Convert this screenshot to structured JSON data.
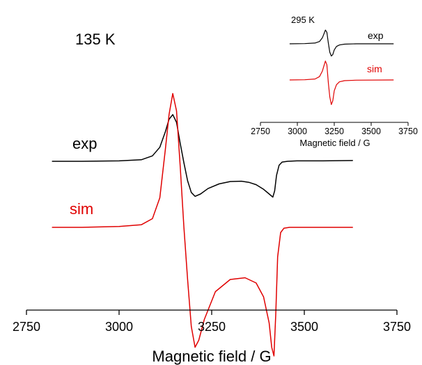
{
  "chart_data": [
    {
      "type": "line",
      "panel": "main",
      "annotation": "135 K",
      "xlabel": "Magnetic field / G",
      "ylabel": "",
      "xlim": [
        2750,
        3750
      ],
      "ylim": [
        -1.0,
        1.0
      ],
      "xticks": [
        2750,
        3000,
        3250,
        3500,
        3750
      ],
      "grid": false,
      "legend": "inline labels left of traces",
      "series": [
        {
          "name": "exp",
          "color": "#000000",
          "baseline": 0.32,
          "x": [
            2820,
            2900,
            3000,
            3060,
            3090,
            3110,
            3125,
            3135,
            3145,
            3155,
            3165,
            3175,
            3185,
            3195,
            3205,
            3220,
            3240,
            3270,
            3300,
            3330,
            3350,
            3370,
            3390,
            3405,
            3415,
            3420,
            3425,
            3432,
            3440,
            3455,
            3480,
            3550,
            3630
          ],
          "y": [
            0.32,
            0.32,
            0.325,
            0.34,
            0.39,
            0.5,
            0.7,
            0.86,
            0.92,
            0.82,
            0.55,
            0.3,
            0.07,
            -0.08,
            -0.13,
            -0.1,
            -0.03,
            0.03,
            0.06,
            0.065,
            0.05,
            0.02,
            -0.04,
            -0.1,
            -0.14,
            -0.06,
            0.14,
            0.27,
            0.31,
            0.32,
            0.325,
            0.325,
            0.33
          ]
        },
        {
          "name": "sim",
          "color": "#e00000",
          "baseline": -0.05,
          "x": [
            2820,
            2900,
            3000,
            3060,
            3090,
            3110,
            3125,
            3135,
            3145,
            3155,
            3165,
            3175,
            3185,
            3195,
            3205,
            3215,
            3230,
            3260,
            3300,
            3340,
            3370,
            3390,
            3405,
            3412,
            3418,
            3423,
            3428,
            3436,
            3445,
            3460,
            3500,
            3630
          ],
          "y": [
            -0.05,
            -0.05,
            -0.045,
            -0.035,
            0.0,
            0.12,
            0.4,
            0.6,
            0.72,
            0.62,
            0.3,
            -0.05,
            -0.35,
            -0.62,
            -0.74,
            -0.7,
            -0.58,
            -0.42,
            -0.35,
            -0.34,
            -0.37,
            -0.45,
            -0.6,
            -0.74,
            -0.79,
            -0.55,
            -0.22,
            -0.08,
            -0.055,
            -0.05,
            -0.05,
            -0.05
          ]
        }
      ]
    },
    {
      "type": "line",
      "panel": "inset",
      "annotation": "295 K",
      "xlabel": "Magnetic field / G",
      "ylabel": "",
      "xlim": [
        2750,
        3750
      ],
      "ylim": [
        -1.0,
        1.0
      ],
      "xticks": [
        2750,
        3000,
        3250,
        3500,
        3750
      ],
      "grid": false,
      "legend": "inline labels right of traces",
      "series": [
        {
          "name": "exp",
          "color": "#000000",
          "baseline": 0.5,
          "x": [
            2950,
            3050,
            3120,
            3150,
            3170,
            3180,
            3190,
            3200,
            3210,
            3220,
            3230,
            3240,
            3250,
            3265,
            3285,
            3320,
            3400,
            3650
          ],
          "y": [
            0.5,
            0.505,
            0.52,
            0.56,
            0.66,
            0.76,
            0.86,
            0.8,
            0.52,
            0.28,
            0.18,
            0.22,
            0.34,
            0.43,
            0.47,
            0.49,
            0.5,
            0.5
          ]
        },
        {
          "name": "sim",
          "color": "#e00000",
          "baseline": -0.22,
          "x": [
            2950,
            3050,
            3120,
            3150,
            3170,
            3180,
            3190,
            3200,
            3210,
            3220,
            3230,
            3240,
            3250,
            3265,
            3285,
            3320,
            3400,
            3650
          ],
          "y": [
            -0.22,
            -0.215,
            -0.2,
            -0.15,
            -0.03,
            0.08,
            0.18,
            0.1,
            -0.28,
            -0.58,
            -0.74,
            -0.66,
            -0.45,
            -0.32,
            -0.26,
            -0.235,
            -0.225,
            -0.22
          ]
        }
      ]
    }
  ]
}
